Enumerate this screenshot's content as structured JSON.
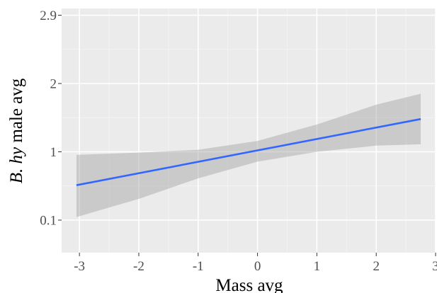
{
  "chart_data": {
    "type": "line",
    "title": "",
    "xlabel": "Mass avg",
    "ylabel_italic": "B. hy",
    "ylabel_rest": " male avg",
    "xlim": [
      -3.3,
      3.0
    ],
    "ylim": [
      0.04,
      2.9
    ],
    "y_scale": "nonlinear (tick labels 0.1, 1, 2, 2.9 are equally spaced)",
    "x_ticks": [
      -3,
      -2,
      -1,
      0,
      1,
      2,
      3
    ],
    "x_tick_labels": [
      "-3",
      "-2",
      "-1",
      "0",
      "1",
      "2",
      "3"
    ],
    "y_ticks": [
      0.1,
      1,
      2,
      2.9
    ],
    "y_tick_labels": [
      "0.1",
      "1",
      "2",
      "2.9"
    ],
    "grid": true,
    "line_color": "#3366ff",
    "ribbon_color": "#999999",
    "panel_bg": "#ebebeb",
    "fit": {
      "x": [
        -3.05,
        2.75
      ],
      "y": [
        0.56,
        1.48
      ]
    },
    "ci_band": {
      "x": [
        -3.05,
        -2,
        -1,
        0,
        1,
        2,
        2.75
      ],
      "lower": [
        0.14,
        0.38,
        0.65,
        0.87,
        1.0,
        1.09,
        1.11
      ],
      "upper": [
        0.96,
        0.99,
        1.03,
        1.16,
        1.4,
        1.69,
        1.85
      ]
    }
  }
}
